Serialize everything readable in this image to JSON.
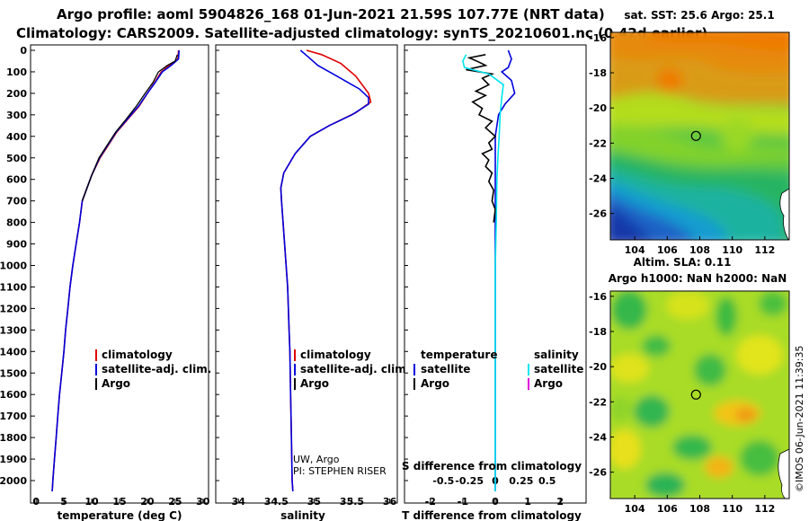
{
  "header": {
    "line1": "Argo profile: aoml 5904826_168 01-Jun-2021 21.59S 107.77E (NRT data)",
    "line2": "Climatology: CARS2009. Satellite-adjusted climatology: synTS_20210601.nc (0.42d earlier)"
  },
  "colors": {
    "climatology": "#e00000",
    "satellite": "#0000dd",
    "argo": "#000000",
    "salinity_satellite": "#00e5ee",
    "salinity_argo": "#e000e0"
  },
  "chart_data": [
    {
      "type": "line",
      "panel": "temperature",
      "xlabel": "temperature (deg C)",
      "xlim": [
        -1,
        31
      ],
      "xticks": [
        0,
        5,
        10,
        15,
        20,
        25,
        30
      ],
      "ylim": [
        0,
        2060
      ],
      "yticks": [
        0,
        100,
        200,
        300,
        400,
        500,
        600,
        700,
        800,
        900,
        1000,
        1100,
        1200,
        1300,
        1400,
        1500,
        1600,
        1700,
        1800,
        1900,
        2000
      ],
      "legend": [
        "climatology",
        "satellite-adj. clim.",
        "Argo"
      ],
      "series": [
        {
          "name": "climatology",
          "points": [
            [
              25.6,
              0
            ],
            [
              25.5,
              40
            ],
            [
              24,
              70
            ],
            [
              22.5,
              100
            ],
            [
              21.3,
              150
            ],
            [
              20,
              200
            ],
            [
              18.5,
              260
            ],
            [
              16.5,
              320
            ],
            [
              14.5,
              380
            ],
            [
              13,
              440
            ],
            [
              11.5,
              500
            ],
            [
              10,
              580
            ],
            [
              9,
              650
            ],
            [
              8.3,
              700
            ],
            [
              7.8,
              800
            ],
            [
              7.2,
              900
            ],
            [
              6.6,
              1000
            ],
            [
              6.1,
              1100
            ],
            [
              5.7,
              1200
            ],
            [
              5.3,
              1300
            ],
            [
              5,
              1400
            ],
            [
              4.6,
              1500
            ],
            [
              4.2,
              1600
            ],
            [
              3.9,
              1700
            ],
            [
              3.6,
              1800
            ],
            [
              3.3,
              1900
            ],
            [
              3,
              2000
            ],
            [
              2.9,
              2050
            ]
          ]
        },
        {
          "name": "satellite-adj. clim.",
          "points": [
            [
              25.7,
              0
            ],
            [
              25.6,
              40
            ],
            [
              24.3,
              70
            ],
            [
              22.7,
              100
            ],
            [
              21.4,
              150
            ],
            [
              20,
              200
            ],
            [
              18.4,
              260
            ],
            [
              16.4,
              320
            ],
            [
              14.4,
              380
            ],
            [
              12.9,
              440
            ],
            [
              11.4,
              500
            ],
            [
              10,
              580
            ],
            [
              9,
              650
            ],
            [
              8.3,
              700
            ],
            [
              7.8,
              800
            ],
            [
              7.2,
              900
            ],
            [
              6.6,
              1000
            ],
            [
              6.1,
              1100
            ],
            [
              5.7,
              1200
            ],
            [
              5.3,
              1300
            ],
            [
              5,
              1400
            ],
            [
              4.6,
              1500
            ],
            [
              4.2,
              1600
            ],
            [
              3.9,
              1700
            ],
            [
              3.6,
              1800
            ],
            [
              3.3,
              1900
            ],
            [
              3,
              2000
            ],
            [
              2.9,
              2050
            ]
          ]
        },
        {
          "name": "Argo",
          "points": [
            [
              25.4,
              20
            ],
            [
              25,
              50
            ],
            [
              23.6,
              70
            ],
            [
              22,
              100
            ],
            [
              21,
              150
            ],
            [
              19.6,
              200
            ],
            [
              18,
              260
            ],
            [
              16.2,
              320
            ],
            [
              14.3,
              380
            ],
            [
              12.8,
              440
            ],
            [
              11.3,
              500
            ],
            [
              10,
              580
            ],
            [
              9,
              650
            ],
            [
              8.3,
              700
            ]
          ]
        }
      ]
    },
    {
      "type": "line",
      "panel": "salinity",
      "xlabel": "salinity",
      "xlim": [
        33.7,
        36.1
      ],
      "xticks": [
        34,
        34.5,
        35,
        35.5,
        36
      ],
      "xtick_labels": [
        "34",
        "34.5",
        "35",
        "35.5",
        "36"
      ],
      "ylim": [
        0,
        2060
      ],
      "legend": [
        "climatology",
        "satellite-adj. clim.",
        "Argo"
      ],
      "annotation": [
        "UW, Argo",
        "PI: STEPHEN RISER"
      ],
      "series": [
        {
          "name": "climatology",
          "points": [
            [
              34.9,
              0
            ],
            [
              35.1,
              20
            ],
            [
              35.35,
              60
            ],
            [
              35.55,
              120
            ],
            [
              35.72,
              200
            ],
            [
              35.75,
              240
            ],
            [
              35.55,
              290
            ],
            [
              35.2,
              350
            ],
            [
              34.95,
              400
            ],
            [
              34.75,
              480
            ],
            [
              34.6,
              570
            ],
            [
              34.56,
              640
            ],
            [
              34.57,
              700
            ],
            [
              34.59,
              800
            ],
            [
              34.61,
              900
            ],
            [
              34.63,
              1000
            ],
            [
              34.65,
              1100
            ],
            [
              34.66,
              1200
            ],
            [
              34.67,
              1300
            ],
            [
              34.68,
              1400
            ],
            [
              34.69,
              1600
            ],
            [
              34.7,
              1800
            ],
            [
              34.71,
              2000
            ],
            [
              34.72,
              2050
            ]
          ]
        },
        {
          "name": "satellite-adj. clim.",
          "points": [
            [
              34.82,
              0
            ],
            [
              34.92,
              30
            ],
            [
              35.05,
              70
            ],
            [
              35.3,
              120
            ],
            [
              35.6,
              180
            ],
            [
              35.72,
              220
            ],
            [
              35.72,
              250
            ],
            [
              35.5,
              300
            ],
            [
              35.2,
              350
            ],
            [
              34.95,
              400
            ],
            [
              34.75,
              480
            ],
            [
              34.6,
              570
            ],
            [
              34.56,
              640
            ],
            [
              34.57,
              700
            ],
            [
              34.59,
              800
            ],
            [
              34.61,
              900
            ],
            [
              34.63,
              1000
            ],
            [
              34.65,
              1100
            ],
            [
              34.66,
              1200
            ],
            [
              34.67,
              1300
            ],
            [
              34.68,
              1400
            ],
            [
              34.69,
              1600
            ],
            [
              34.7,
              1800
            ],
            [
              34.71,
              2000
            ],
            [
              34.72,
              2050
            ]
          ]
        }
      ]
    },
    {
      "type": "line",
      "panel": "difference",
      "xlabel": "T difference from climatology",
      "xlabel_top": "S difference from climatology",
      "xlim": [
        -2.8,
        2.8
      ],
      "xticks": [
        -2,
        -1,
        0,
        1,
        2
      ],
      "s_ticks": [
        -0.5,
        -0.25,
        0,
        0.25,
        0.5
      ],
      "s_tick_labels": [
        "-0.5",
        "-0.25",
        "0",
        "0.25",
        "0.5"
      ],
      "legend_headers": [
        "temperature",
        "salinity"
      ],
      "legend_left": [
        "satellite",
        "Argo"
      ],
      "legend_right": [
        "satellite",
        "Argo"
      ],
      "series": [
        {
          "name": "temperature satellite",
          "points": [
            [
              0.4,
              0
            ],
            [
              0.5,
              40
            ],
            [
              0.4,
              80
            ],
            [
              0.2,
              100
            ],
            [
              0.5,
              140
            ],
            [
              0.6,
              200
            ],
            [
              0.3,
              250
            ],
            [
              0.1,
              300
            ],
            [
              0,
              400
            ],
            [
              0,
              600
            ],
            [
              0,
              2050
            ]
          ]
        },
        {
          "name": "temperature Argo",
          "points": [
            [
              -0.3,
              20
            ],
            [
              -0.8,
              35
            ],
            [
              -0.5,
              55
            ],
            [
              -0.3,
              70
            ],
            [
              -0.9,
              90
            ],
            [
              -0.1,
              110
            ],
            [
              -0.4,
              130
            ],
            [
              -0.2,
              160
            ],
            [
              -0.6,
              190
            ],
            [
              -0.3,
              210
            ],
            [
              -0.7,
              240
            ],
            [
              -0.4,
              270
            ],
            [
              -0.5,
              300
            ],
            [
              -0.1,
              330
            ],
            [
              -0.3,
              360
            ],
            [
              0,
              400
            ],
            [
              -0.2,
              430
            ],
            [
              -0.1,
              460
            ],
            [
              -0.4,
              480
            ],
            [
              -0.2,
              510
            ],
            [
              -0.3,
              540
            ],
            [
              -0.1,
              570
            ],
            [
              -0.2,
              610
            ],
            [
              -0.05,
              650
            ],
            [
              -0.1,
              700
            ],
            [
              0,
              740
            ],
            [
              -0.05,
              800
            ]
          ]
        },
        {
          "name": "salinity satellite",
          "points": [
            [
              -0.9,
              20
            ],
            [
              -1,
              50
            ],
            [
              -0.95,
              80
            ],
            [
              -0.2,
              110
            ],
            [
              0.25,
              160
            ],
            [
              0.2,
              220
            ],
            [
              0.15,
              300
            ],
            [
              0.12,
              400
            ],
            [
              0.08,
              500
            ],
            [
              0.05,
              600
            ],
            [
              0.03,
              800
            ],
            [
              0,
              1000
            ],
            [
              0,
              2050
            ]
          ]
        }
      ]
    },
    {
      "type": "heatmap",
      "panel": "sst_map",
      "title": "sat. SST: 25.6 Argo: 25.1",
      "xticks": [
        104,
        106,
        108,
        110,
        112
      ],
      "yticks": [
        -16,
        -18,
        -20,
        -22,
        -24,
        -26
      ],
      "xlim": [
        102.5,
        113.5
      ],
      "ylim": [
        -27.5,
        -15.7
      ],
      "marker": [
        107.77,
        -21.59
      ]
    },
    {
      "type": "heatmap",
      "panel": "sla_map",
      "title_line1": "Altim. SLA: 0.11",
      "title_line2": "Argo h1000: NaN h2000: NaN",
      "xticks": [
        104,
        106,
        108,
        110,
        112
      ],
      "yticks": [
        -16,
        -18,
        -20,
        -22,
        -24,
        -26
      ],
      "xlim": [
        102.5,
        113.5
      ],
      "ylim": [
        -27.5,
        -15.7
      ],
      "marker": [
        107.77,
        -21.59
      ]
    }
  ],
  "footer": {
    "watermark": "©IMOS 06-Jun-2021 11:39:35"
  }
}
